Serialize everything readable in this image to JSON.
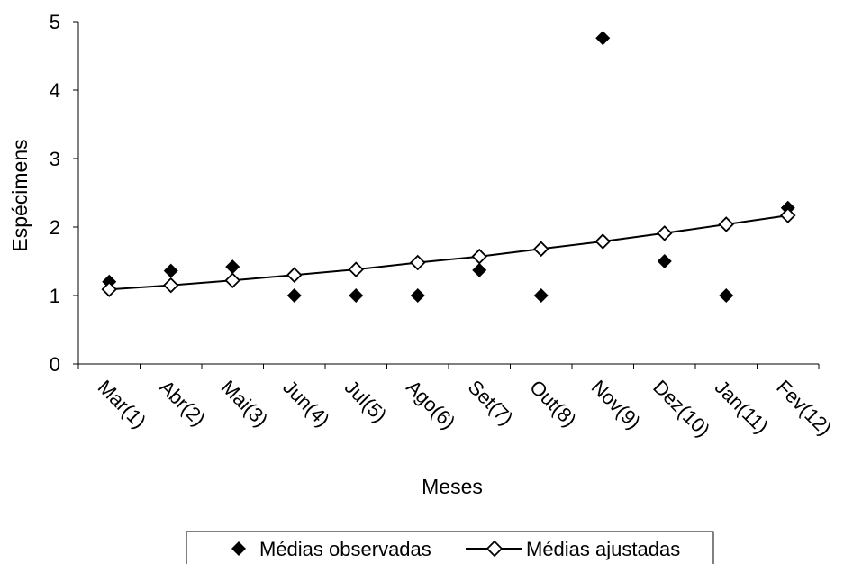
{
  "chart_data": {
    "type": "scatter",
    "categories": [
      "Mar(1)",
      "Abr(2)",
      "Mai(3)",
      "Jun(4)",
      "Jul(5)",
      "Ago(6)",
      "Set(7)",
      "Out(8)",
      "Nov(9)",
      "Dez(10)",
      "Jan(11)",
      "Fev(12)"
    ],
    "series": [
      {
        "name": "Médias observadas",
        "marker": "filled-diamond",
        "line": false,
        "color": "#000000",
        "values": [
          1.2,
          1.36,
          1.42,
          1.0,
          1.0,
          1.0,
          1.37,
          1.0,
          4.76,
          1.5,
          1.0,
          2.28
        ]
      },
      {
        "name": "Médias ajustadas",
        "marker": "open-diamond",
        "line": true,
        "color": "#000000",
        "values": [
          1.09,
          1.15,
          1.22,
          1.3,
          1.38,
          1.48,
          1.57,
          1.68,
          1.79,
          1.91,
          2.04,
          2.17
        ]
      }
    ],
    "title": "",
    "xlabel": "Meses",
    "ylabel": "Espécimens",
    "ylim": [
      0,
      5
    ],
    "yticks": [
      0,
      1,
      2,
      3,
      4,
      5
    ],
    "grid": false,
    "legend_position": "bottom"
  }
}
